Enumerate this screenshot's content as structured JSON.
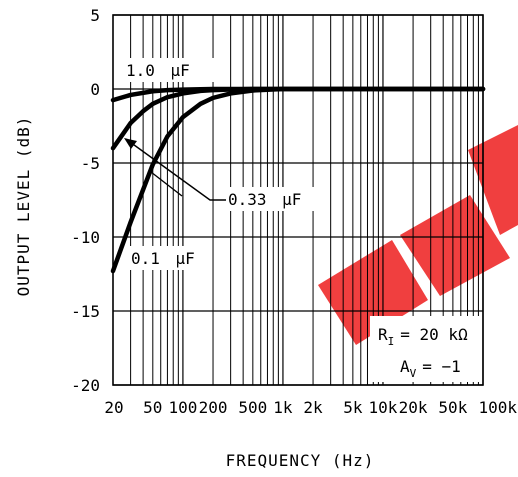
{
  "chart_data": {
    "type": "line",
    "xscale": "log",
    "xlim": [
      20,
      100000
    ],
    "ylim": [
      -20,
      5
    ],
    "xlabel": "FREQUENCY (Hz)",
    "ylabel": "OUTPUT LEVEL (dB)",
    "x_tick_labels": [
      "20",
      "50",
      "100",
      "200",
      "500",
      "1k",
      "2k",
      "5k",
      "10k",
      "20k",
      "50k",
      "100k"
    ],
    "x_tick_values": [
      20,
      50,
      100,
      200,
      500,
      1000,
      2000,
      5000,
      10000,
      20000,
      50000,
      100000
    ],
    "y_tick_labels": [
      "5",
      "0",
      "-5",
      "-10",
      "-15",
      "-20"
    ],
    "y_tick_values": [
      5,
      0,
      -5,
      -10,
      -15,
      -20
    ],
    "grid": true,
    "series": [
      {
        "name": "1.0 μF",
        "x": [
          20,
          30,
          50,
          70,
          100,
          150,
          200,
          300,
          500,
          1000,
          100000
        ],
        "y": [
          -0.75,
          -0.4,
          -0.15,
          -0.08,
          -0.04,
          -0.02,
          0,
          0,
          0,
          0,
          0
        ]
      },
      {
        "name": "0.33 μF",
        "x": [
          20,
          30,
          40,
          50,
          70,
          100,
          150,
          200,
          300,
          500,
          1000,
          100000
        ],
        "y": [
          -4.0,
          -2.3,
          -1.5,
          -1.0,
          -0.55,
          -0.3,
          -0.13,
          -0.08,
          -0.03,
          0,
          0,
          0
        ]
      },
      {
        "name": "0.1 μF",
        "x": [
          20,
          30,
          40,
          50,
          70,
          100,
          150,
          200,
          300,
          500,
          700,
          1000,
          100000
        ],
        "y": [
          -12.3,
          -9.0,
          -6.8,
          -5.1,
          -3.2,
          -1.9,
          -1.0,
          -0.6,
          -0.3,
          -0.1,
          -0.05,
          0,
          0
        ]
      }
    ],
    "annotations": {
      "label_1uF": {
        "value": "1.0",
        "unit": "μF"
      },
      "label_033uF": {
        "value": "0.33",
        "unit": "μF"
      },
      "label_01uF": {
        "value": "0.1",
        "unit": "μF"
      },
      "condition_1": {
        "symbol": "R",
        "sub": "I",
        "value": "= 20 kΩ"
      },
      "condition_2": {
        "symbol": "A",
        "sub": "V",
        "value": "= −1"
      }
    }
  },
  "colors": {
    "curve": "#000000",
    "grid": "#000000",
    "watermark": "#ee2a2a"
  }
}
